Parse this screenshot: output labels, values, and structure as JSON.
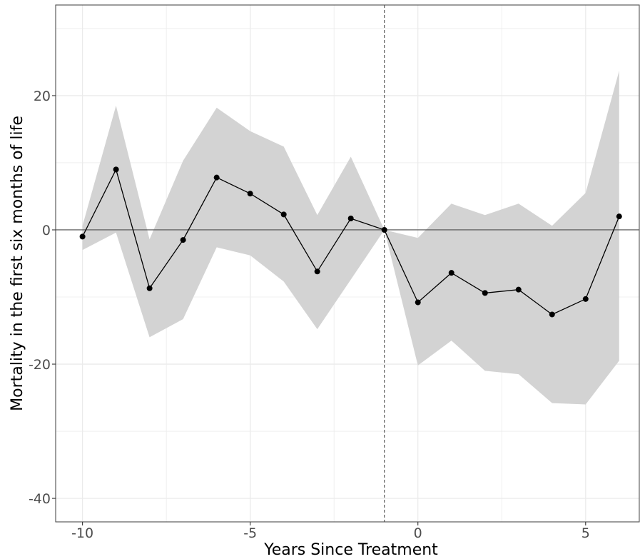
{
  "chart_data": {
    "type": "line",
    "title": "",
    "xlabel": "Years Since Treatment",
    "ylabel": "Mortality in the first six months of life",
    "xlim": [
      -10.8,
      6.6
    ],
    "ylim": [
      -43.5,
      33.5
    ],
    "x_ticks": [
      -10,
      -5,
      0,
      5
    ],
    "x_tick_labels": [
      "-10",
      "-5",
      "0",
      "5"
    ],
    "y_ticks": [
      -40,
      -20,
      0,
      20
    ],
    "y_tick_labels": [
      "-40",
      "-20",
      "0",
      "20"
    ],
    "grid": true,
    "reference_lines": {
      "horizontal_y": 0,
      "vertical_x": -1,
      "vertical_style": "dashed"
    },
    "series": [
      {
        "x": [
          -10,
          -9,
          -8,
          -7,
          -6,
          -5,
          -4,
          -3,
          -2,
          -1,
          0,
          1,
          2,
          3,
          4,
          5,
          6
        ],
        "values": [
          -1.0,
          9.0,
          -8.7,
          -1.5,
          7.8,
          5.4,
          2.3,
          -6.2,
          1.7,
          0.0,
          -10.8,
          -6.4,
          -9.4,
          -8.9,
          -12.6,
          -10.3,
          2.0
        ],
        "ci_lower": [
          -3.0,
          -0.4,
          -16.0,
          -13.3,
          -2.6,
          -3.8,
          -7.7,
          -14.8,
          -7.4,
          0.0,
          -20.2,
          -16.5,
          -21.0,
          -21.5,
          -25.8,
          -26.0,
          -19.5
        ],
        "ci_upper": [
          0.6,
          18.5,
          -1.4,
          10.3,
          18.2,
          14.7,
          12.4,
          2.2,
          10.9,
          0.0,
          -1.2,
          3.9,
          2.2,
          3.9,
          0.6,
          5.5,
          23.7
        ]
      }
    ]
  },
  "colors": {
    "panel_background": "#ffffff",
    "grid": "#ebebeb",
    "ribbon": "#d3d3d3",
    "line": "#000000",
    "zero_line": "#4d4d4d",
    "panel_border": "#4d4d4d",
    "dashed_line": "#4d4d4d"
  }
}
